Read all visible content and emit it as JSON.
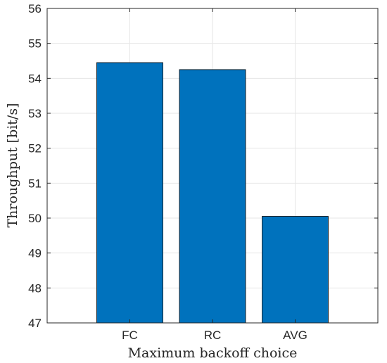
{
  "chart_data": {
    "type": "bar",
    "categories": [
      "FC",
      "RC",
      "AVG"
    ],
    "values": [
      54.45,
      54.25,
      50.05
    ],
    "xlabel": "Maximum backoff choice",
    "ylabel": "Throughput [bit/s]",
    "ylim": [
      47,
      56
    ],
    "yticks": [
      47,
      48,
      49,
      50,
      51,
      52,
      53,
      54,
      55,
      56
    ],
    "grid": true,
    "bar_color": "#0072BD",
    "bar_edge_color": "#000000",
    "axis_color": "#262626",
    "grid_color": "#e6e6e6"
  }
}
